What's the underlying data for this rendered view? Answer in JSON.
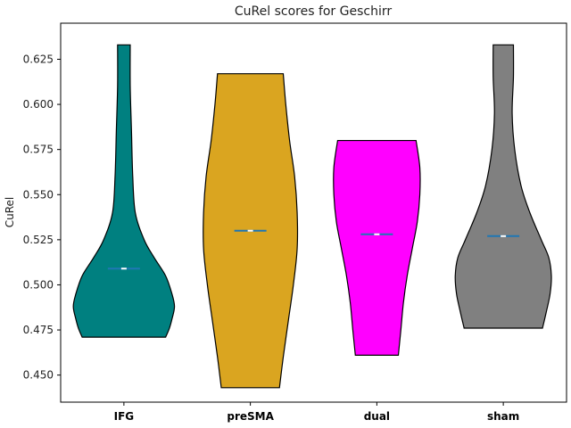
{
  "chart_data": {
    "type": "violin",
    "title": "CuRel scores for Geschirr",
    "xlabel": "",
    "ylabel": "CuRel",
    "ylim": [
      0.435,
      0.645
    ],
    "yticks": [
      0.45,
      0.475,
      0.5,
      0.525,
      0.55,
      0.575,
      0.6,
      0.625
    ],
    "ytick_labels": [
      "0.450",
      "0.475",
      "0.500",
      "0.525",
      "0.550",
      "0.575",
      "0.600",
      "0.625"
    ],
    "categories": [
      "IFG",
      "preSMA",
      "dual",
      "sham"
    ],
    "median_color": "#1f77b4",
    "grid": false,
    "violins": [
      {
        "category": "IFG",
        "color": "#008080",
        "min": 0.471,
        "max": 0.633,
        "median": 0.509,
        "profile": [
          {
            "y": 0.471,
            "w": 0.33
          },
          {
            "y": 0.476,
            "w": 0.36
          },
          {
            "y": 0.481,
            "w": 0.38
          },
          {
            "y": 0.488,
            "w": 0.4
          },
          {
            "y": 0.495,
            "w": 0.38
          },
          {
            "y": 0.505,
            "w": 0.33
          },
          {
            "y": 0.515,
            "w": 0.24
          },
          {
            "y": 0.525,
            "w": 0.16
          },
          {
            "y": 0.54,
            "w": 0.09
          },
          {
            "y": 0.56,
            "w": 0.07
          },
          {
            "y": 0.585,
            "w": 0.06
          },
          {
            "y": 0.61,
            "w": 0.05
          },
          {
            "y": 0.633,
            "w": 0.05
          }
        ]
      },
      {
        "category": "preSMA",
        "color": "#DAA520",
        "min": 0.443,
        "max": 0.617,
        "median": 0.53,
        "profile": [
          {
            "y": 0.443,
            "w": 0.23
          },
          {
            "y": 0.46,
            "w": 0.26
          },
          {
            "y": 0.48,
            "w": 0.3
          },
          {
            "y": 0.5,
            "w": 0.34
          },
          {
            "y": 0.52,
            "w": 0.37
          },
          {
            "y": 0.54,
            "w": 0.37
          },
          {
            "y": 0.56,
            "w": 0.35
          },
          {
            "y": 0.58,
            "w": 0.31
          },
          {
            "y": 0.6,
            "w": 0.28
          },
          {
            "y": 0.617,
            "w": 0.26
          }
        ]
      },
      {
        "category": "dual",
        "color": "#FF00FF",
        "min": 0.461,
        "max": 0.58,
        "median": 0.528,
        "profile": [
          {
            "y": 0.461,
            "w": 0.17
          },
          {
            "y": 0.475,
            "w": 0.19
          },
          {
            "y": 0.49,
            "w": 0.21
          },
          {
            "y": 0.505,
            "w": 0.24
          },
          {
            "y": 0.52,
            "w": 0.28
          },
          {
            "y": 0.535,
            "w": 0.32
          },
          {
            "y": 0.55,
            "w": 0.34
          },
          {
            "y": 0.565,
            "w": 0.34
          },
          {
            "y": 0.58,
            "w": 0.31
          }
        ]
      },
      {
        "category": "sham",
        "color": "#808080",
        "min": 0.476,
        "max": 0.633,
        "median": 0.527,
        "profile": [
          {
            "y": 0.476,
            "w": 0.31
          },
          {
            "y": 0.485,
            "w": 0.34
          },
          {
            "y": 0.495,
            "w": 0.37
          },
          {
            "y": 0.505,
            "w": 0.38
          },
          {
            "y": 0.515,
            "w": 0.36
          },
          {
            "y": 0.525,
            "w": 0.3
          },
          {
            "y": 0.54,
            "w": 0.21
          },
          {
            "y": 0.555,
            "w": 0.14
          },
          {
            "y": 0.575,
            "w": 0.09
          },
          {
            "y": 0.595,
            "w": 0.07
          },
          {
            "y": 0.615,
            "w": 0.08
          },
          {
            "y": 0.633,
            "w": 0.08
          }
        ]
      }
    ]
  }
}
